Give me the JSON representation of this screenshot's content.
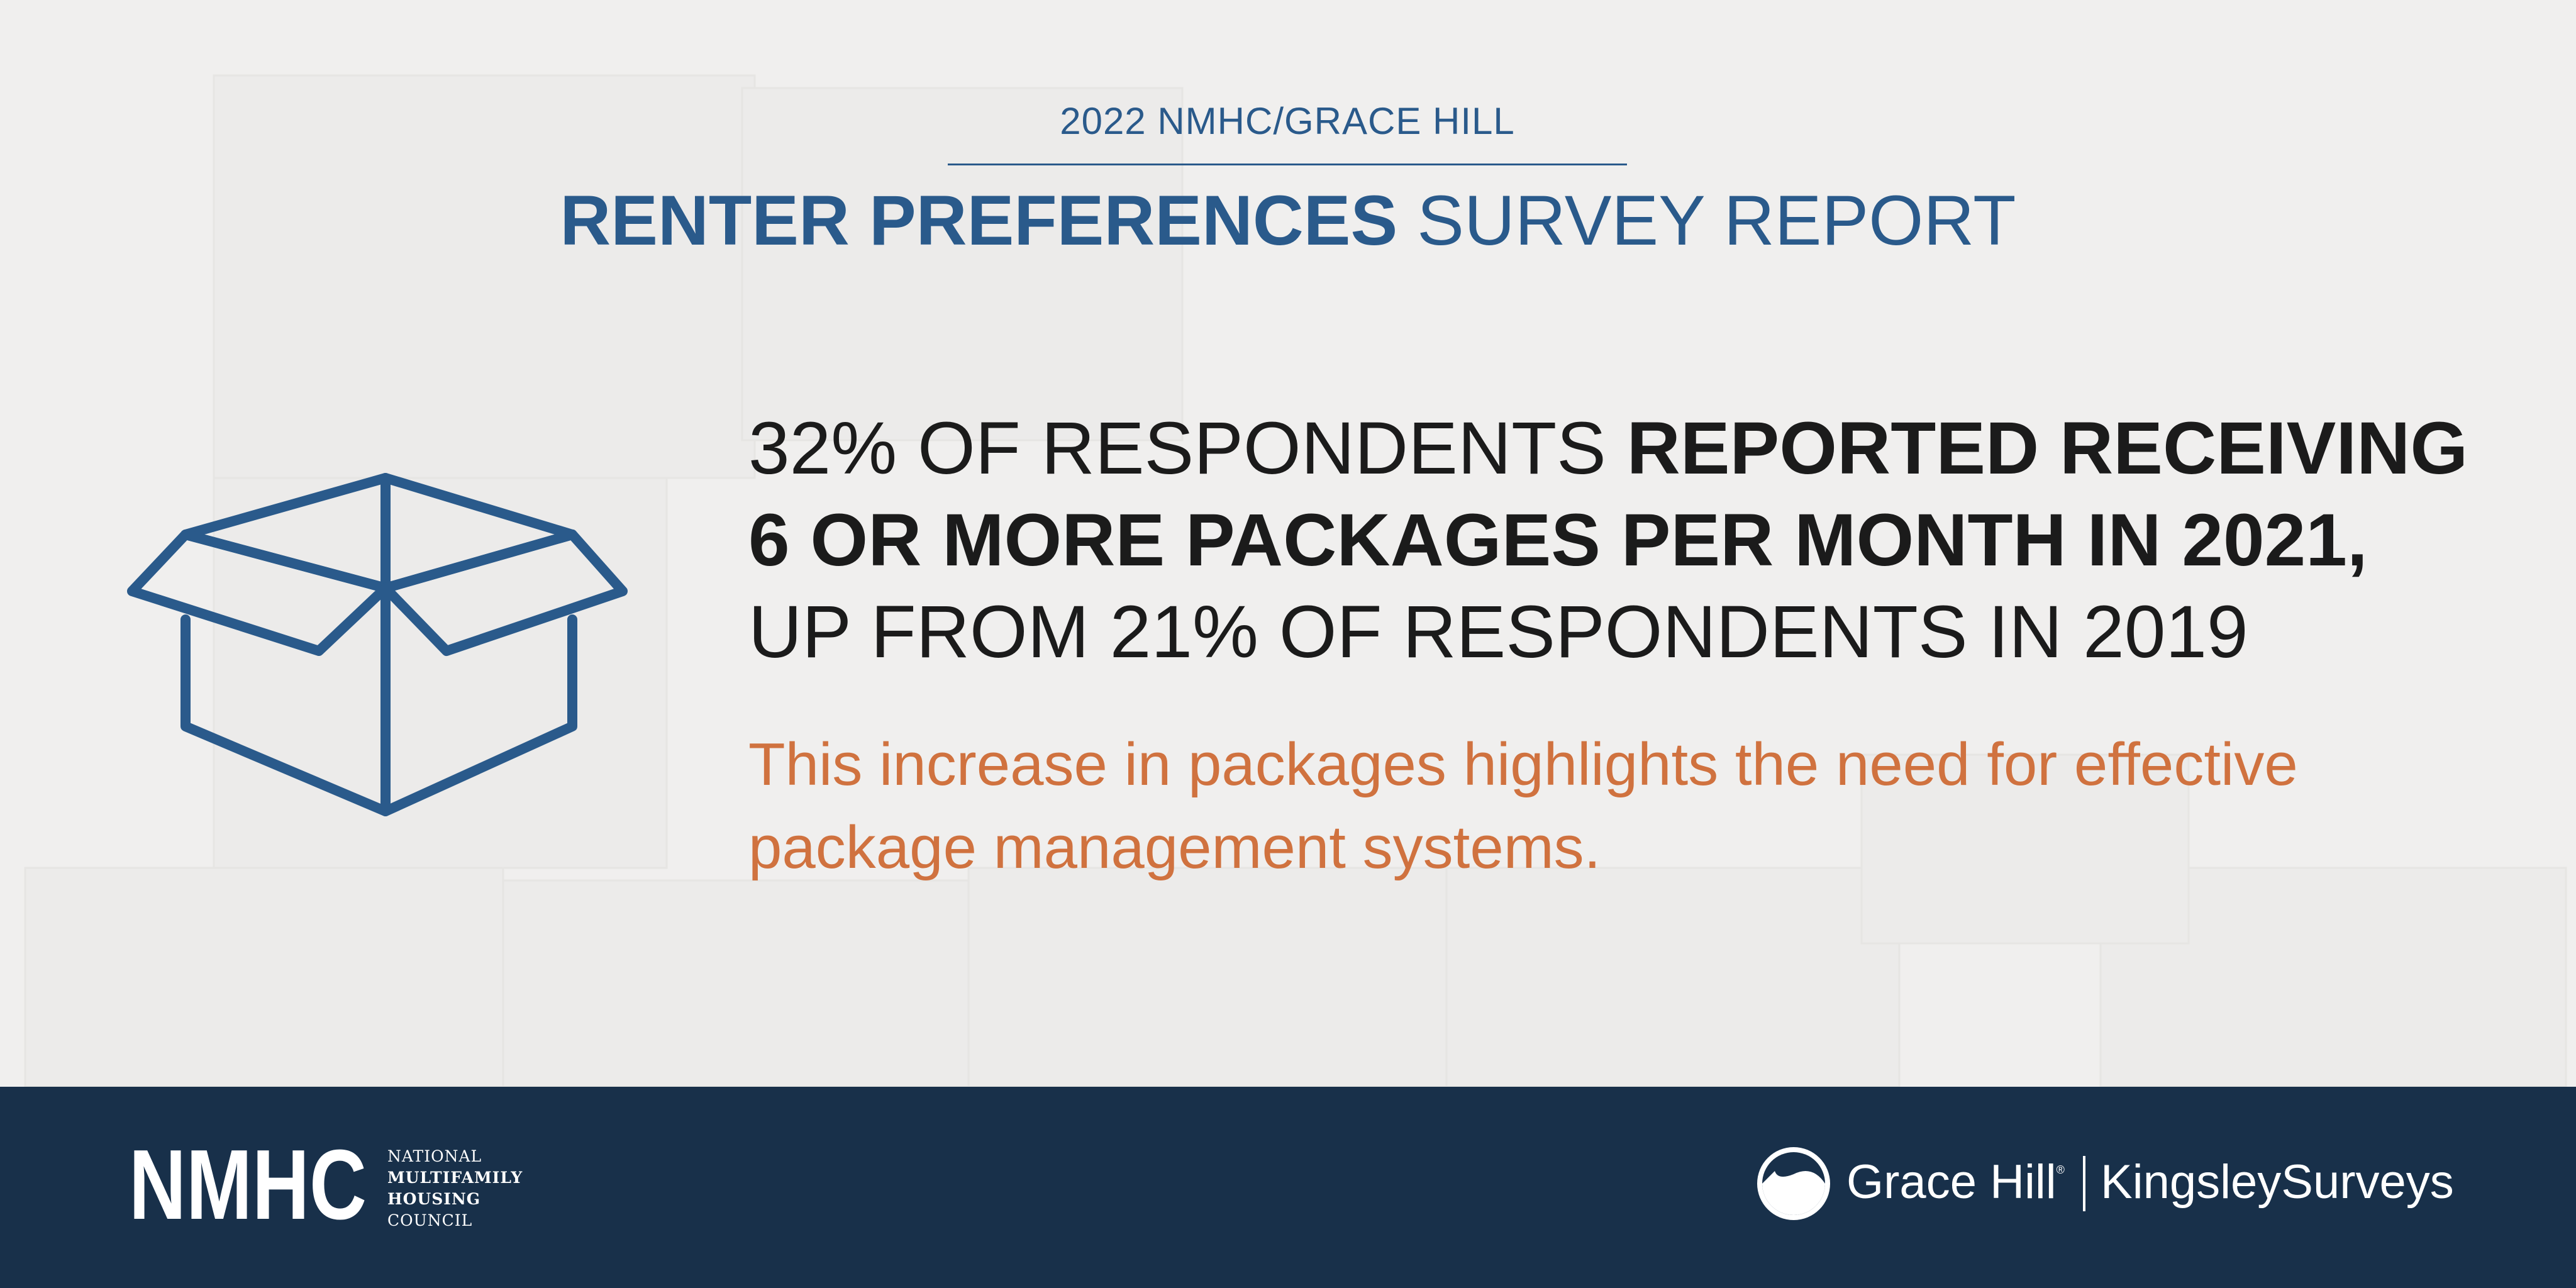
{
  "header": {
    "kicker": "2022 NMHC/GRACE HILL",
    "title_bold": "RENTER PREFERENCES",
    "title_light": "SURVEY REPORT"
  },
  "stat": {
    "line1_regular": "32% OF RESPONDENTS ",
    "line1_bold": "REPORTED RECEIVING",
    "line2_bold": "6 OR MORE PACKAGES PER MONTH IN 2021,",
    "line3_regular": "UP FROM 21% OF RESPONDENTS IN 2019"
  },
  "note": {
    "text": "This increase in packages highlights the need for effective package management systems."
  },
  "footer": {
    "nmhc_caption": [
      "NATIONAL",
      "MULTIFAMILY",
      "HOUSING",
      "COUNCIL"
    ],
    "grace_hill": "Grace Hill",
    "grace_hill_mark": "®",
    "kingsley": "KingsleySurveys"
  },
  "icons": {
    "box": "open-box-icon",
    "nmhc_logo": "nmhc-logo",
    "grace_hill_logo": "grace-hill-logo"
  },
  "colors": {
    "brand_blue": "#2a5a8b",
    "accent_orange": "#d0723f",
    "footer_navy": "#18304a",
    "background": "#f0efee"
  }
}
